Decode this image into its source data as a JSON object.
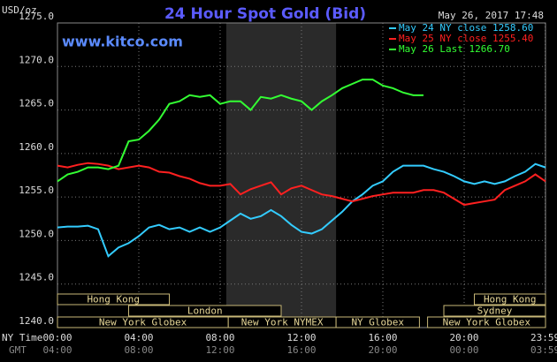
{
  "chart_data": {
    "type": "line",
    "title": "24 Hour Spot Gold (Bid)",
    "website": "www.kitco.com",
    "timestamp": "May 26, 2017 17:48",
    "y_label": "USD/oz",
    "x_row_label": "NY Time",
    "gmt_row_label": "GMT",
    "x": [
      0,
      0.5,
      1,
      1.5,
      2,
      2.5,
      3,
      3.5,
      4,
      4.5,
      5,
      5.5,
      6,
      6.5,
      7,
      7.5,
      8,
      8.5,
      9,
      9.5,
      10,
      10.5,
      11,
      11.5,
      12,
      12.5,
      13,
      13.5,
      14,
      14.5,
      15,
      15.5,
      16,
      16.5,
      17,
      17.5,
      18,
      18.5,
      19,
      19.5,
      20,
      20.5,
      21,
      21.5,
      22,
      22.5,
      23,
      23.5,
      24
    ],
    "series": [
      {
        "name": "May 24 NY close 1258.60",
        "color": "#33ccff",
        "values": [
          1251.5,
          1251.6,
          1251.6,
          1251.7,
          1251.3,
          1248.2,
          1249.2,
          1249.7,
          1250.5,
          1251.5,
          1251.8,
          1251.3,
          1251.5,
          1251.0,
          1251.5,
          1251.0,
          1251.5,
          1252.3,
          1253.1,
          1252.5,
          1252.8,
          1253.5,
          1252.8,
          1251.8,
          1251.0,
          1250.8,
          1251.3,
          1252.3,
          1253.3,
          1254.5,
          1255.3,
          1256.3,
          1256.8,
          1257.9,
          1258.6,
          1258.6,
          1258.6,
          1258.2,
          1257.9,
          1257.4,
          1256.8,
          1256.5,
          1256.8,
          1256.5,
          1256.8,
          1257.4,
          1257.9,
          1258.8,
          1258.4
        ]
      },
      {
        "name": "May 25 NY close 1255.40",
        "color": "#ff2020",
        "values": [
          1258.6,
          1258.4,
          1258.7,
          1258.9,
          1258.8,
          1258.6,
          1258.2,
          1258.4,
          1258.6,
          1258.4,
          1257.9,
          1257.8,
          1257.4,
          1257.1,
          1256.6,
          1256.3,
          1256.3,
          1256.5,
          1255.3,
          1255.9,
          1256.3,
          1256.7,
          1255.3,
          1256.0,
          1256.3,
          1255.8,
          1255.3,
          1255.1,
          1254.8,
          1254.5,
          1254.8,
          1255.1,
          1255.3,
          1255.5,
          1255.5,
          1255.5,
          1255.8,
          1255.8,
          1255.5,
          1254.8,
          1254.1,
          1254.3,
          1254.5,
          1254.7,
          1255.8,
          1256.3,
          1256.8,
          1257.6,
          1256.8
        ]
      },
      {
        "name": "May 26 Last 1266.70",
        "color": "#33ff33",
        "values": [
          1256.8,
          1257.6,
          1257.9,
          1258.4,
          1258.4,
          1258.2,
          1258.6,
          1261.4,
          1261.6,
          1262.6,
          1263.9,
          1265.7,
          1266.0,
          1266.7,
          1266.5,
          1266.7,
          1265.7,
          1266.0,
          1266.0,
          1265.0,
          1266.5,
          1266.3,
          1266.7,
          1266.3,
          1266.0,
          1265.0,
          1266.0,
          1266.7,
          1267.5,
          1268.0,
          1268.5,
          1268.5,
          1267.8,
          1267.5,
          1267.0,
          1266.7,
          1266.7,
          null,
          null,
          null,
          null,
          null,
          null,
          null,
          null,
          null,
          null,
          null,
          null
        ]
      }
    ],
    "xlim": [
      0,
      24
    ],
    "ylim": [
      1240,
      1275
    ],
    "yticks": [
      {
        "value": 1240,
        "label": "1240.0"
      },
      {
        "value": 1245,
        "label": "1245.0"
      },
      {
        "value": 1250,
        "label": "1250.0"
      },
      {
        "value": 1255,
        "label": "1255.0"
      },
      {
        "value": 1260,
        "label": "1260.0"
      },
      {
        "value": 1265,
        "label": "1265.0"
      },
      {
        "value": 1270,
        "label": "1270.0"
      },
      {
        "value": 1275,
        "label": "1275.0"
      }
    ],
    "xticks": [
      {
        "value": 0,
        "label": "00:00"
      },
      {
        "value": 4,
        "label": "04:00"
      },
      {
        "value": 8,
        "label": "08:00"
      },
      {
        "value": 12,
        "label": "12:00"
      },
      {
        "value": 16,
        "label": "16:00"
      },
      {
        "value": 20,
        "label": "20:00"
      },
      {
        "value": 23.983,
        "label": "23:59"
      }
    ],
    "gmt_labels": [
      "04:00",
      "08:00",
      "12:00",
      "16:00",
      "20:00",
      "00:00",
      "03:59"
    ],
    "sessions": [
      "Hong Kong",
      "London",
      "New York Globex",
      "New York NYMEX",
      "NY Globex",
      "Hong Kong",
      "Sydney",
      "New York Globex"
    ],
    "grid": true
  }
}
